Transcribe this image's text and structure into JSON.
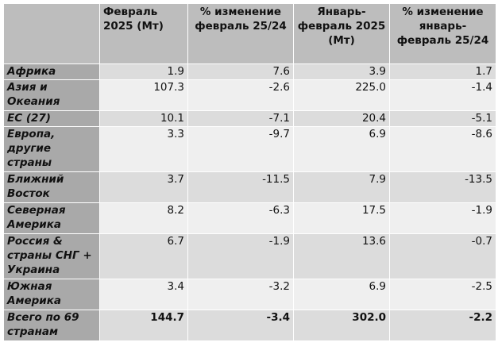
{
  "headers": {
    "region": "",
    "feb_2025": "Февраль 2025 (Мт)",
    "feb_change": "% изменение февраль 25/24",
    "jan_feb_2025": "Январь-февраль 2025 (Мт)",
    "jan_feb_change": "% изменение январь-февраль 25/24"
  },
  "rows": [
    {
      "region": "Африка",
      "feb": "1.9",
      "feb_pct": "7.6",
      "janfeb": "3.9",
      "janfeb_pct": "1.7"
    },
    {
      "region": "Азия и Океания",
      "feb": "107.3",
      "feb_pct": "-2.6",
      "janfeb": "225.0",
      "janfeb_pct": "-1.4"
    },
    {
      "region": "ЕС (27)",
      "feb": "10.1",
      "feb_pct": "-7.1",
      "janfeb": "20.4",
      "janfeb_pct": "-5.1"
    },
    {
      "region": "Европа, другие страны",
      "feb": "3.3",
      "feb_pct": "-9.7",
      "janfeb": "6.9",
      "janfeb_pct": "-8.6"
    },
    {
      "region": "Ближний Восток",
      "feb": "3.7",
      "feb_pct": "-11.5",
      "janfeb": "7.9",
      "janfeb_pct": "-13.5"
    },
    {
      "region": "Северная Америка",
      "feb": "8.2",
      "feb_pct": "-6.3",
      "janfeb": "17.5",
      "janfeb_pct": "-1.9"
    },
    {
      "region": "Россия & страны СНГ + Украина",
      "feb": "6.7",
      "feb_pct": "-1.9",
      "janfeb": "13.6",
      "janfeb_pct": "-0.7"
    },
    {
      "region": "Южная Америка",
      "feb": "3.4",
      "feb_pct": "-3.2",
      "janfeb": "6.9",
      "janfeb_pct": "-2.5"
    },
    {
      "region": "Всего по 69 странам",
      "feb": "144.7",
      "feb_pct": "-3.4",
      "janfeb": "302.0",
      "janfeb_pct": "-2.2"
    }
  ]
}
